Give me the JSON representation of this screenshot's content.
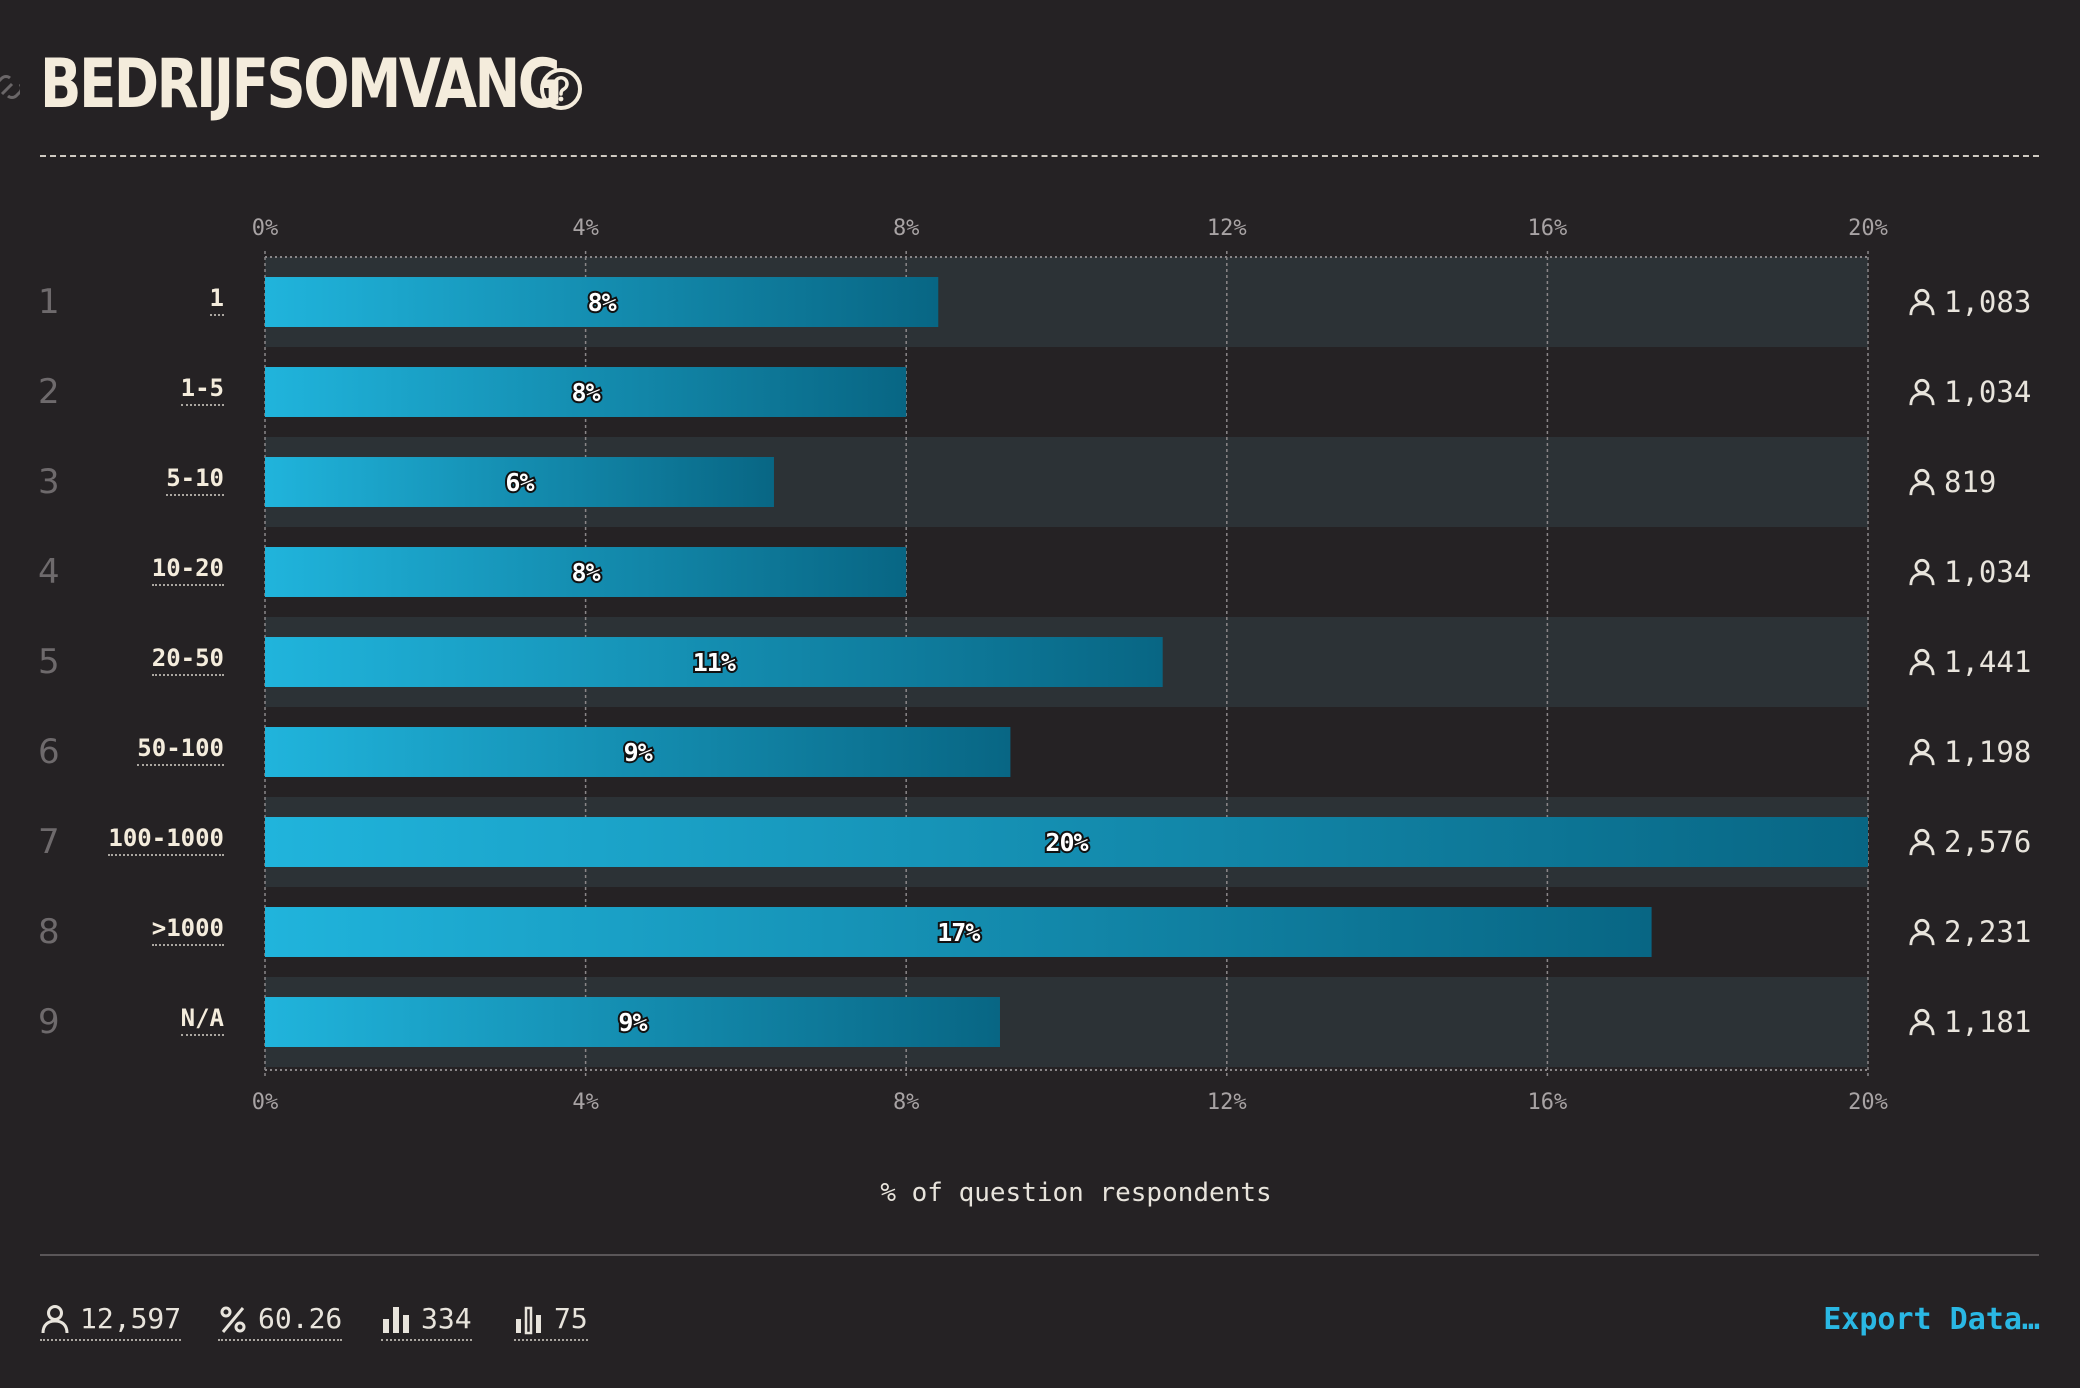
{
  "header": {
    "title": "BEDRIJFSOMVANG",
    "icons": {
      "link": "link-icon",
      "help": "help-circle-icon"
    }
  },
  "axis": {
    "top_ticks": [
      "0%",
      "4%",
      "8%",
      "12%",
      "16%",
      "20%"
    ],
    "bottom_ticks": [
      "0%",
      "4%",
      "8%",
      "12%",
      "16%",
      "20%"
    ]
  },
  "rows": [
    {
      "index": "1",
      "label": "1",
      "percent": "8%",
      "count": "1,083"
    },
    {
      "index": "2",
      "label": "1-5",
      "percent": "8%",
      "count": "1,034"
    },
    {
      "index": "3",
      "label": "5-10",
      "percent": "6%",
      "count": "819"
    },
    {
      "index": "4",
      "label": "10-20",
      "percent": "8%",
      "count": "1,034"
    },
    {
      "index": "5",
      "label": "20-50",
      "percent": "11%",
      "count": "1,441"
    },
    {
      "index": "6",
      "label": "50-100",
      "percent": "9%",
      "count": "1,198"
    },
    {
      "index": "7",
      "label": "100-1000",
      "percent": "20%",
      "count": "2,576"
    },
    {
      "index": "8",
      "label": ">1000",
      "percent": "17%",
      "count": "2,231"
    },
    {
      "index": "9",
      "label": "N/A",
      "percent": "9%",
      "count": "1,181"
    }
  ],
  "chart_data": {
    "type": "bar",
    "orientation": "horizontal",
    "categories": [
      "1",
      "1-5",
      "5-10",
      "10-20",
      "20-50",
      "50-100",
      "100-1000",
      ">1000",
      "N/A"
    ],
    "values": [
      8.4,
      8.0,
      6.35,
      8.0,
      11.2,
      9.3,
      20.0,
      17.3,
      9.17
    ],
    "data_labels": [
      "8%",
      "8%",
      "6%",
      "8%",
      "11%",
      "9%",
      "20%",
      "17%",
      "9%"
    ],
    "counts": [
      1083,
      1034,
      819,
      1034,
      1441,
      1198,
      2576,
      2231,
      1181
    ],
    "xlabel": "% of question respondents",
    "ylabel": "",
    "xlim": [
      0,
      20
    ],
    "xticks": [
      0,
      4,
      8,
      12,
      16,
      20
    ],
    "grid": true,
    "colors": {
      "bar_start": "#20b4dc",
      "bar_end": "#086684",
      "row_band": "#2c3236",
      "background": "#252224"
    }
  },
  "footer": {
    "stats": [
      {
        "icon": "user-icon",
        "value": "12,597"
      },
      {
        "icon": "percent-icon",
        "value": "60.26"
      },
      {
        "icon": "bar-chart-icon",
        "value": "334"
      },
      {
        "icon": "bar-chart-outline-icon",
        "value": "75"
      }
    ],
    "export_label": "Export Data…",
    "accent": "#2ab8e4"
  }
}
